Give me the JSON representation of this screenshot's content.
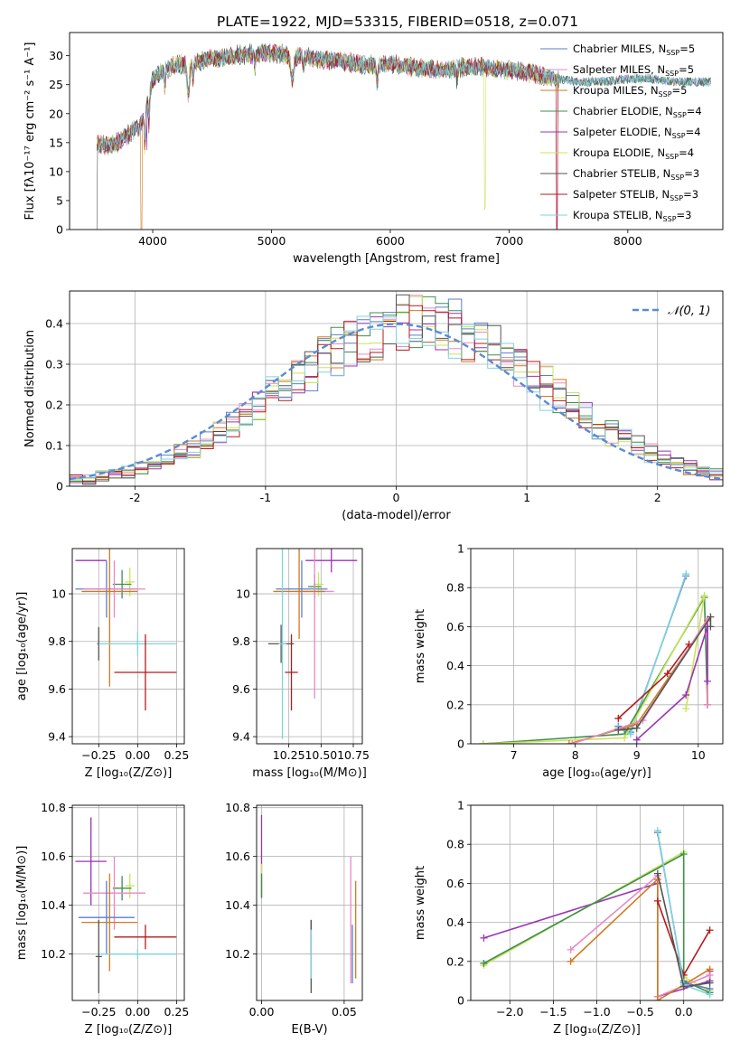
{
  "figure": {
    "title": "PLATE=1922, MJD=53315, FIBERID=0518, z=0.071"
  },
  "chart_data": [
    {
      "id": "spectrum",
      "type": "line",
      "xlabel": "wavelength [Angstrom, rest frame]",
      "ylabel": "Flux [fλ10⁻¹⁷ erg cm⁻² s⁻¹ A⁻¹]",
      "xlim": [
        3300,
        8800
      ],
      "ylim": [
        0,
        34
      ],
      "xticks": [
        4000,
        5000,
        6000,
        7000,
        8000
      ],
      "yticks": [
        0,
        5,
        10,
        15,
        20,
        25,
        30
      ],
      "grid": false,
      "legend_position": "upper-right",
      "continuum": {
        "x": [
          3530,
          3600,
          3700,
          3800,
          3900,
          3950,
          4000,
          4100,
          4200,
          4300,
          4400,
          4500,
          4700,
          4900,
          5000,
          5200,
          5400,
          5600,
          5800,
          6000,
          6200,
          6400,
          6500,
          6600,
          6800,
          7000,
          7200,
          7400,
          7600,
          7800,
          8000,
          8200,
          8400,
          8700
        ],
        "y": [
          15,
          14.5,
          15,
          16.5,
          18,
          21,
          26,
          27.5,
          28.5,
          28.5,
          29,
          29.5,
          30,
          30.5,
          30.5,
          30,
          29.5,
          29,
          28.5,
          28.5,
          28,
          27.5,
          27.5,
          28,
          28,
          27.5,
          27,
          26,
          25.5,
          25.5,
          26,
          26,
          25.5,
          25.5
        ]
      },
      "series": [
        {
          "name": "Chabrier MILES, N_SSP=5",
          "label_main": "Chabrier MILES, N",
          "label_sub": "SSP",
          "label_tail": "=5",
          "color": "#5a7fc9"
        },
        {
          "name": "Salpeter MILES, N_SSP=5",
          "label_main": "Salpeter MILES, N",
          "label_sub": "SSP",
          "label_tail": "=5",
          "color": "#e889c3"
        },
        {
          "name": "Kroupa MILES, N_SSP=5",
          "label_main": "Kroupa MILES, N",
          "label_sub": "SSP",
          "label_tail": "=5",
          "color": "#d07a22"
        },
        {
          "name": "Chabrier ELODIE, N_SSP=4",
          "label_main": "Chabrier ELODIE, N",
          "label_sub": "SSP",
          "label_tail": "=4",
          "color": "#3f8f4e"
        },
        {
          "name": "Salpeter ELODIE, N_SSP=4",
          "label_main": "Salpeter ELODIE, N",
          "label_sub": "SSP",
          "label_tail": "=4",
          "color": "#9b33b5"
        },
        {
          "name": "Kroupa ELODIE, N_SSP=4",
          "label_main": "Kroupa ELODIE, N",
          "label_sub": "SSP",
          "label_tail": "=4",
          "color": "#c8e45a"
        },
        {
          "name": "Chabrier STELIB, N_SSP=3",
          "label_main": "Chabrier STELIB, N",
          "label_sub": "SSP",
          "label_tail": "=3",
          "color": "#555555"
        },
        {
          "name": "Salpeter STELIB, N_SSP=3",
          "label_main": "Salpeter STELIB, N",
          "label_sub": "SSP",
          "label_tail": "=3",
          "color": "#b31b1b"
        },
        {
          "name": "Kroupa STELIB, N_SSP=3",
          "label_main": "Kroupa STELIB, N",
          "label_sub": "SSP",
          "label_tail": "=3",
          "color": "#7fd3dc"
        }
      ]
    },
    {
      "id": "residuals",
      "type": "line",
      "xlabel": "(data-model)/error",
      "ylabel": "Normed distribution",
      "xlim": [
        -2.5,
        2.5
      ],
      "ylim": [
        0,
        0.48
      ],
      "xticks": [
        -2,
        -1,
        0,
        1,
        2
      ],
      "yticks": [
        0.0,
        0.1,
        0.2,
        0.3,
        0.4
      ],
      "grid": true,
      "legend_position": "upper-right",
      "legend_label": "𝒩(0, 1)",
      "gaussian_color": "#5a8ad6",
      "bins": 50
    },
    {
      "id": "age-vs-Z",
      "type": "scatter",
      "xlabel": "Z [log₁₀(Z/Z⊙)]",
      "ylabel": "age  [log₁₀(age/yr)]",
      "xlim": [
        -0.42,
        0.3
      ],
      "ylim": [
        9.37,
        10.19
      ],
      "xticks": [
        -0.25,
        0.0,
        0.25
      ],
      "xticklabels": [
        "−0.25",
        "0.00",
        "0.25"
      ],
      "yticks": [
        9.4,
        9.6,
        9.8,
        10.0
      ],
      "grid": true,
      "points": [
        {
          "x": -0.3,
          "y": 10.14,
          "xerr": 0.1,
          "yerr": 0.0,
          "series": 4
        },
        {
          "x": -0.05,
          "y": 10.05,
          "xerr": 0.03,
          "yerr": 0.06,
          "series": 5
        },
        {
          "x": -0.1,
          "y": 10.04,
          "xerr": 0.06,
          "yerr": 0.06,
          "series": 3
        },
        {
          "x": -0.2,
          "y": 10.02,
          "xerr": 0.2,
          "yerr": 0.12,
          "series": 0
        },
        {
          "x": -0.15,
          "y": 10.02,
          "xerr": 0.2,
          "yerr": 0.12,
          "series": 1
        },
        {
          "x": -0.18,
          "y": 10.01,
          "xerr": 0.18,
          "yerr": 0.4,
          "series": 2
        },
        {
          "x": -0.25,
          "y": 9.79,
          "xerr": 0.01,
          "yerr": 0.07,
          "series": 6
        },
        {
          "x": 0.0,
          "y": 9.79,
          "xerr": 0.25,
          "yerr": 0.05,
          "series": 8
        },
        {
          "x": 0.05,
          "y": 9.67,
          "xerr": 0.2,
          "yerr": 0.16,
          "series": 7
        }
      ]
    },
    {
      "id": "age-vs-mass",
      "type": "scatter",
      "xlabel": "mass [log₁₀(M/M⊙)]",
      "ylabel": "",
      "xlim": [
        10.0,
        10.82
      ],
      "ylim": [
        9.37,
        10.19
      ],
      "xticks": [
        10.25,
        10.5,
        10.75
      ],
      "xticklabels": [
        "10.25",
        "10.50",
        "10.75"
      ],
      "yticks": [
        9.4,
        9.6,
        9.8,
        10.0
      ],
      "grid": true,
      "points": [
        {
          "x": 10.58,
          "y": 10.14,
          "xerr": 0.2,
          "yerr": 0.05,
          "series": 4
        },
        {
          "x": 10.48,
          "y": 10.04,
          "xerr": 0.04,
          "yerr": 0.05,
          "series": 5
        },
        {
          "x": 10.45,
          "y": 10.03,
          "xerr": 0.05,
          "yerr": 0.05,
          "series": 3
        },
        {
          "x": 10.35,
          "y": 10.02,
          "xerr": 0.2,
          "yerr": 0.12,
          "series": 0
        },
        {
          "x": 10.45,
          "y": 10.01,
          "xerr": 0.15,
          "yerr": 0.45,
          "series": 1
        },
        {
          "x": 10.33,
          "y": 10.01,
          "xerr": 0.2,
          "yerr": 0.2,
          "series": 2
        },
        {
          "x": 10.19,
          "y": 9.79,
          "xerr": 0.1,
          "yerr": 0.08,
          "series": 6
        },
        {
          "x": 10.2,
          "y": 9.79,
          "xerr": 0.03,
          "yerr": 0.4,
          "series": 8
        },
        {
          "x": 10.27,
          "y": 9.67,
          "xerr": 0.05,
          "yerr": 0.16,
          "series": 7
        }
      ]
    },
    {
      "id": "weight-vs-age",
      "type": "line",
      "xlabel": "age  [log₁₀(age/yr)]",
      "ylabel": "mass weight",
      "xlim": [
        6.3,
        10.4
      ],
      "ylim": [
        0,
        1
      ],
      "xticks": [
        7,
        8,
        9,
        10
      ],
      "yticks": [
        0.0,
        0.2,
        0.4,
        0.6,
        0.8,
        1.0
      ],
      "grid": true,
      "lines": [
        {
          "series": 0,
          "x": [
            8.7,
            8.9,
            9.8
          ],
          "y": [
            0.09,
            0.06,
            0.86
          ]
        },
        {
          "series": 8,
          "x": [
            8.7,
            8.9,
            9.8
          ],
          "y": [
            0.08,
            0.05,
            0.87
          ]
        },
        {
          "series": 3,
          "x": [
            6.5,
            8.8,
            10.1,
            10.15
          ],
          "y": [
            0.0,
            0.05,
            0.75,
            0.2
          ]
        },
        {
          "series": 5,
          "x": [
            6.5,
            8.8,
            10.1,
            9.8
          ],
          "y": [
            0.0,
            0.03,
            0.76,
            0.18
          ]
        },
        {
          "series": 2,
          "x": [
            7.9,
            9.0,
            10.15,
            10.15
          ],
          "y": [
            0.0,
            0.1,
            0.63,
            0.2
          ]
        },
        {
          "series": 1,
          "x": [
            7.95,
            9.1,
            10.15,
            10.15
          ],
          "y": [
            0.0,
            0.12,
            0.64,
            0.2
          ]
        },
        {
          "series": 4,
          "x": [
            9.0,
            9.8,
            10.15,
            10.15
          ],
          "y": [
            0.02,
            0.25,
            0.6,
            0.32
          ]
        },
        {
          "series": 6,
          "x": [
            8.7,
            9.0,
            10.2,
            10.2
          ],
          "y": [
            0.07,
            0.08,
            0.65,
            0.6
          ]
        },
        {
          "series": 7,
          "x": [
            8.7,
            9.5,
            9.85
          ],
          "y": [
            0.13,
            0.36,
            0.51
          ]
        }
      ]
    },
    {
      "id": "mass-vs-Z",
      "type": "scatter",
      "xlabel": "Z [log₁₀(Z/Z⊙)]",
      "ylabel": "mass [log₁₀(M/M⊙)]",
      "xlim": [
        -0.42,
        0.3
      ],
      "ylim": [
        10.01,
        10.81
      ],
      "xticks": [
        -0.25,
        0.0,
        0.25
      ],
      "xticklabels": [
        "−0.25",
        "0.00",
        "0.25"
      ],
      "yticks": [
        10.2,
        10.4,
        10.6,
        10.8
      ],
      "grid": true,
      "points": [
        {
          "x": -0.3,
          "y": 10.58,
          "xerr": 0.1,
          "yerr": 0.18,
          "series": 4
        },
        {
          "x": -0.05,
          "y": 10.48,
          "xerr": 0.03,
          "yerr": 0.05,
          "series": 5
        },
        {
          "x": -0.1,
          "y": 10.47,
          "xerr": 0.06,
          "yerr": 0.05,
          "series": 3
        },
        {
          "x": -0.15,
          "y": 10.45,
          "xerr": 0.2,
          "yerr": 0.15,
          "series": 1
        },
        {
          "x": -0.2,
          "y": 10.35,
          "xerr": 0.18,
          "yerr": 0.15,
          "series": 0
        },
        {
          "x": -0.18,
          "y": 10.33,
          "xerr": 0.18,
          "yerr": 0.2,
          "series": 2
        },
        {
          "x": 0.05,
          "y": 10.27,
          "xerr": 0.2,
          "yerr": 0.05,
          "series": 7
        },
        {
          "x": 0.0,
          "y": 10.2,
          "xerr": 0.25,
          "yerr": 0.02,
          "series": 8
        },
        {
          "x": -0.25,
          "y": 10.19,
          "xerr": 0.02,
          "yerr": 0.15,
          "series": 6
        }
      ]
    },
    {
      "id": "mass-vs-EBV",
      "type": "scatter",
      "xlabel": "E(B-V)",
      "ylabel": "",
      "xlim": [
        -0.003,
        0.061
      ],
      "ylim": [
        10.01,
        10.81
      ],
      "xticks": [
        0.0,
        0.05
      ],
      "xticklabels": [
        "0.00",
        "0.05"
      ],
      "yticks": [
        10.2,
        10.4,
        10.6,
        10.8
      ],
      "grid": true,
      "points": [
        {
          "x": 0.0,
          "y": 10.6,
          "yerr": 0.17,
          "series": 4
        },
        {
          "x": 0.0,
          "y": 10.5,
          "yerr": 0.07,
          "series": 5
        },
        {
          "x": 0.0,
          "y": 10.48,
          "yerr": 0.05,
          "series": 3
        },
        {
          "x": 0.054,
          "y": 10.34,
          "yerr": 0.26,
          "series": 1
        },
        {
          "x": 0.057,
          "y": 10.3,
          "yerr": 0.2,
          "series": 2
        },
        {
          "x": 0.03,
          "y": 10.27,
          "yerr": 0.07,
          "series": 7
        },
        {
          "x": 0.03,
          "y": 10.19,
          "yerr": 0.15,
          "series": 6
        },
        {
          "x": 0.03,
          "y": 10.2,
          "yerr": 0.1,
          "series": 8
        },
        {
          "x": 0.055,
          "y": 10.2,
          "yerr": 0.12,
          "series": 0
        }
      ]
    },
    {
      "id": "weight-vs-Z",
      "type": "line",
      "xlabel": "Z [log₁₀(Z/Z⊙)]",
      "ylabel": "mass weight",
      "xlim": [
        -2.45,
        0.45
      ],
      "ylim": [
        0,
        1
      ],
      "xticks": [
        -2.0,
        -1.5,
        -1.0,
        -0.5,
        0.0
      ],
      "xticklabels": [
        "−2.0",
        "−1.5",
        "−1.0",
        "−0.5",
        "0.0"
      ],
      "yticks": [
        0.0,
        0.2,
        0.4,
        0.6,
        0.8,
        1.0
      ],
      "grid": true,
      "lines": [
        {
          "series": 4,
          "x": [
            -2.3,
            -0.3,
            -0.3,
            0.3,
            0.3
          ],
          "y": [
            0.32,
            0.6,
            0.02,
            0.1,
            0.15
          ]
        },
        {
          "series": 5,
          "x": [
            -2.3,
            0.0,
            0.0,
            0.3
          ],
          "y": [
            0.18,
            0.76,
            0.12,
            0.05
          ]
        },
        {
          "series": 3,
          "x": [
            -2.3,
            0.0,
            0.0,
            0.3
          ],
          "y": [
            0.19,
            0.75,
            0.1,
            0.04
          ]
        },
        {
          "series": 1,
          "x": [
            -1.3,
            -0.3,
            -0.3,
            0.3
          ],
          "y": [
            0.26,
            0.64,
            0.02,
            0.13
          ]
        },
        {
          "series": 2,
          "x": [
            -1.3,
            -0.3,
            -0.3,
            0.3
          ],
          "y": [
            0.2,
            0.62,
            0.0,
            0.16
          ]
        },
        {
          "series": 7,
          "x": [
            -0.3,
            0.0,
            0.3
          ],
          "y": [
            0.51,
            0.13,
            0.36
          ]
        },
        {
          "series": 0,
          "x": [
            -0.3,
            0.0,
            0.3
          ],
          "y": [
            0.86,
            0.09,
            0.06
          ]
        },
        {
          "series": 8,
          "x": [
            -0.3,
            0.0,
            0.3
          ],
          "y": [
            0.87,
            0.08,
            0.03
          ]
        },
        {
          "series": 6,
          "x": [
            -0.3,
            0.0,
            0.3
          ],
          "y": [
            0.65,
            0.07,
            0.09
          ]
        }
      ]
    }
  ]
}
